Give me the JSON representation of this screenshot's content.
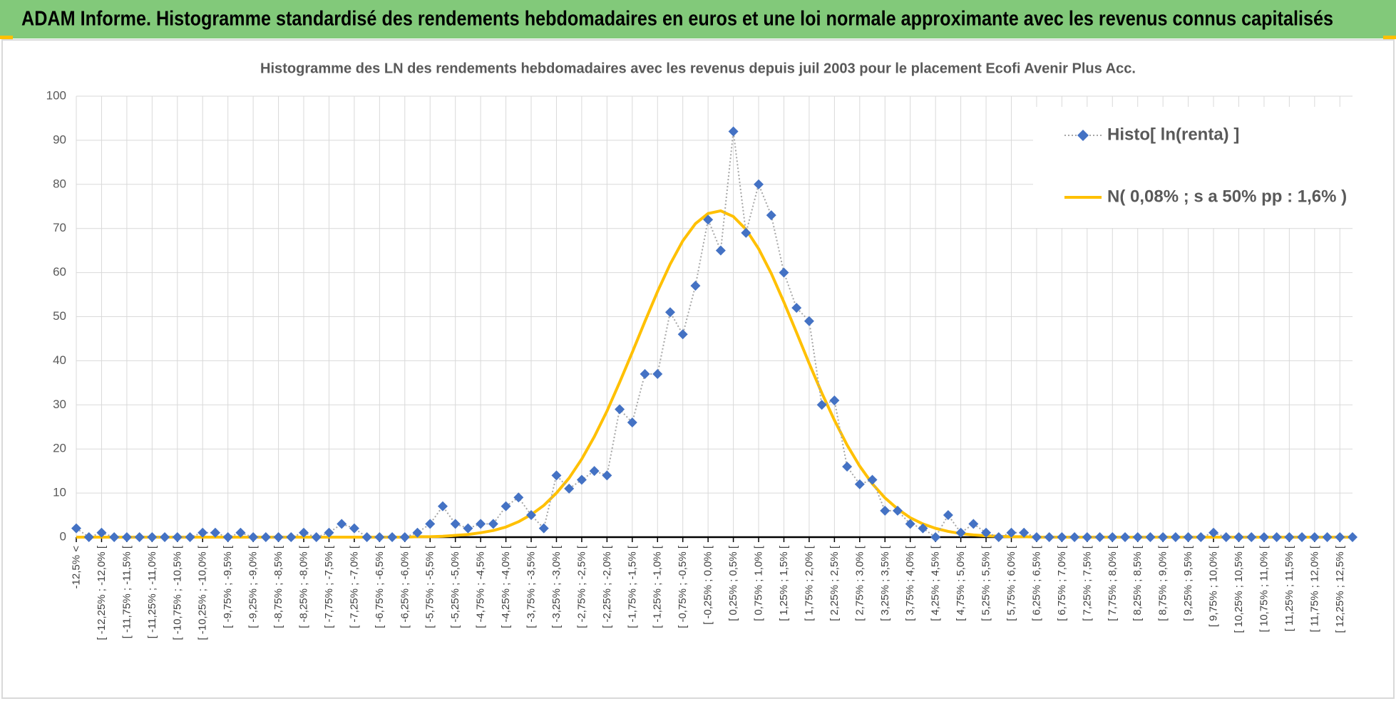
{
  "header": {
    "title": "ADAM Informe. Histogramme standardisé des rendements hebdomadaires en euros et une loi normale approximante avec les revenus connus capitalisés"
  },
  "chart_data": {
    "type": "line",
    "title": "Histogramme  des LN des rendements hebdomadaires avec les revenus depuis juil 2003 pour le placement Ecofi Avenir Plus Acc.",
    "categories": [
      "-12,5% <",
      null,
      "[ -12,25% ; -12,0% [",
      null,
      "[ -11,75% ; -11,5% [",
      null,
      "[ -11,25% ; -11,0% [",
      null,
      "[ -10,75% ; -10,5% [",
      null,
      "[ -10,25% ; -10,0% [",
      null,
      "[ -9,75% ; -9,5% [",
      null,
      "[ -9,25% ; -9,0% [",
      null,
      "[ -8,75% ; -8,5% [",
      null,
      "[ -8,25% ; -8,0% [",
      null,
      "[ -7,75% ; -7,5% [",
      null,
      "[ -7,25% ; -7,0% [",
      null,
      "[ -6,75% ; -6,5% [",
      null,
      "[ -6,25% ; -6,0% [",
      null,
      "[ -5,75% ; -5,5% [",
      null,
      "[ -5,25% ; -5,0% [",
      null,
      "[ -4,75% ; -4,5% [",
      null,
      "[ -4,25% ; -4,0% [",
      null,
      "[ -3,75% ; -3,5% [",
      null,
      "[ -3,25% ; -3,0% [",
      null,
      "[ -2,75% ; -2,5% [",
      null,
      "[ -2,25% ; -2,0% [",
      null,
      "[ -1,75% ; -1,5% [",
      null,
      "[ -1,25% ; -1,0% [",
      null,
      "[ -0,75% ; -0,5% [",
      null,
      "[ -0,25% ; 0,0% [",
      null,
      "[ 0,25% ; 0,5% [",
      null,
      "[ 0,75% ; 1,0% [",
      null,
      "[ 1,25% ; 1,5% [",
      null,
      "[ 1,75% ; 2,0% [",
      null,
      "[ 2,25% ; 2,5% [",
      null,
      "[ 2,75% ; 3,0% [",
      null,
      "[ 3,25% ; 3,5% [",
      null,
      "[ 3,75% ; 4,0% [",
      null,
      "[ 4,25% ; 4,5% [",
      null,
      "[ 4,75% ; 5,0% [",
      null,
      "[ 5,25% ; 5,5% [",
      null,
      "[ 5,75% ; 6,0% [",
      null,
      "[ 6,25% ; 6,5% [",
      null,
      "[ 6,75% ; 7,0% [",
      null,
      "[ 7,25% ; 7,5% [",
      null,
      "[ 7,75% ; 8,0% [",
      null,
      "[ 8,25% ; 8,5% [",
      null,
      "[ 8,75% ; 9,0% [",
      null,
      "[ 9,25% ; 9,5% [",
      null,
      "[ 9,75% ; 10,0% [",
      null,
      "[ 10,25% ; 10,5% [",
      null,
      "[ 10,75% ; 11,0% [",
      null,
      "[ 11,25% ; 11,5% [",
      null,
      "[ 11,75% ; 12,0% [",
      null,
      "[ 12,25% ; 12,5% [",
      null
    ],
    "series": [
      {
        "name": "Histo[ ln(renta) ]",
        "color": "#4472c4",
        "marker": "diamond",
        "line_color": "#a6a6a6",
        "line_style": "dotted",
        "values": [
          2,
          0,
          1,
          0,
          0,
          0,
          0,
          0,
          0,
          0,
          1,
          1,
          0,
          1,
          0,
          0,
          0,
          0,
          1,
          0,
          1,
          3,
          2,
          0,
          0,
          0,
          0,
          1,
          3,
          7,
          3,
          2,
          3,
          3,
          7,
          9,
          5,
          2,
          14,
          11,
          13,
          15,
          14,
          29,
          26,
          37,
          37,
          51,
          46,
          57,
          72,
          65,
          92,
          69,
          80,
          73,
          60,
          52,
          49,
          30,
          31,
          16,
          12,
          13,
          6,
          6,
          3,
          2,
          0,
          5,
          1,
          3,
          1,
          0,
          1,
          1,
          0,
          0,
          0,
          0,
          0,
          0,
          0,
          0,
          0,
          0,
          0,
          0,
          0,
          0,
          1,
          0,
          0,
          0,
          0,
          0,
          0,
          0,
          0,
          0,
          0,
          0
        ]
      },
      {
        "name": "N( 0,08% ; s a 50% pp : 1,6% )",
        "color": "#ffc000",
        "line_width": 4,
        "values": [
          0,
          0,
          0,
          0,
          0,
          0,
          0,
          0,
          0,
          0,
          0,
          0,
          0,
          0,
          0,
          0,
          0,
          0,
          0,
          0,
          0,
          0,
          0,
          0,
          0,
          0,
          0,
          0.1,
          0.1,
          0.2,
          0.4,
          0.6,
          1.0,
          1.5,
          2.3,
          3.5,
          5.1,
          7.2,
          10.0,
          13.4,
          17.7,
          22.8,
          28.6,
          35.1,
          41.9,
          48.9,
          55.7,
          61.9,
          67.2,
          71.1,
          73.4,
          74.0,
          72.7,
          69.8,
          65.4,
          59.8,
          53.3,
          46.4,
          39.4,
          32.7,
          26.5,
          20.9,
          16.1,
          12.1,
          8.9,
          6.4,
          4.4,
          3.0,
          2.0,
          1.3,
          0.8,
          0.5,
          0.3,
          0.2,
          0.1,
          0.1,
          0,
          0,
          0,
          0,
          0,
          0,
          0,
          0,
          0,
          0,
          0,
          0,
          0,
          0,
          0,
          0,
          0,
          0,
          0,
          0,
          0,
          0,
          0,
          0,
          0,
          0
        ]
      }
    ],
    "ylim": [
      0,
      100
    ],
    "yticks": [
      0,
      10,
      20,
      30,
      40,
      50,
      60,
      70,
      80,
      90,
      100
    ],
    "grid": true,
    "legend": "top-right"
  }
}
